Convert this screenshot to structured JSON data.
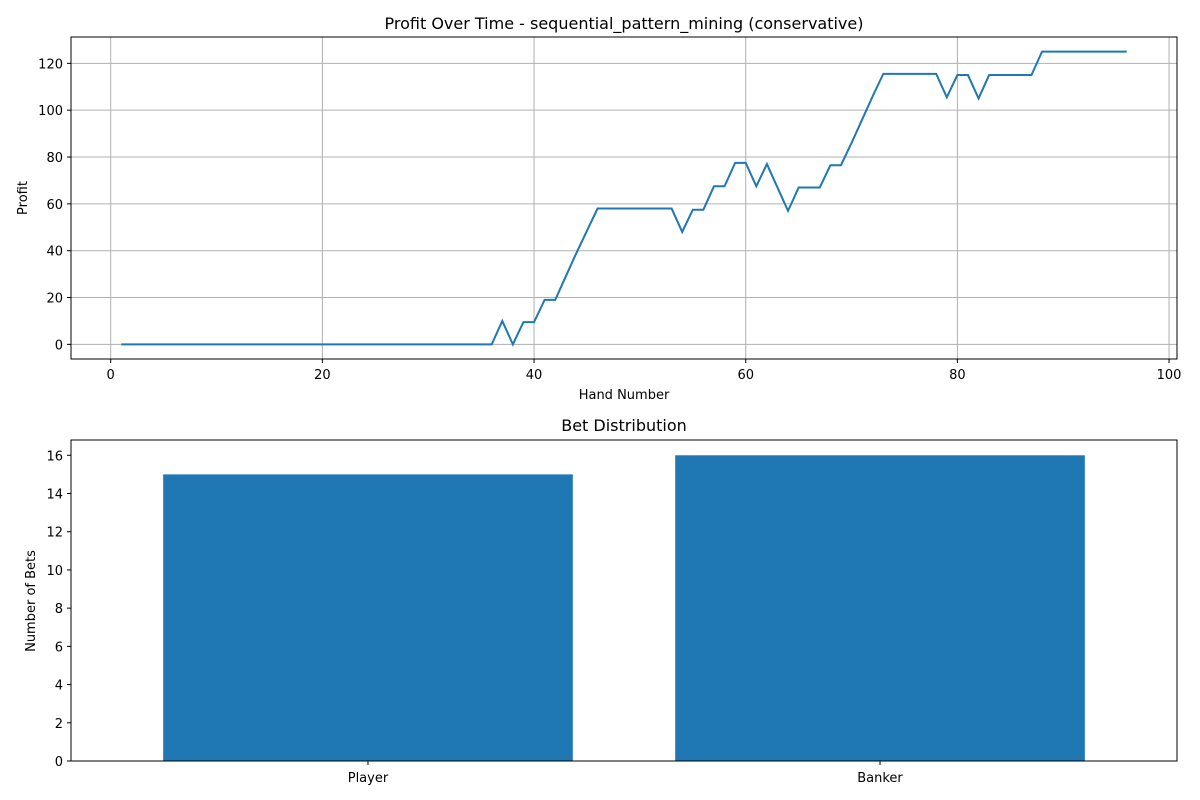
{
  "chart_data": [
    {
      "type": "line",
      "title": "Profit Over Time - sequential_pattern_mining (conservative)",
      "xlabel": "Hand Number",
      "ylabel": "Profit",
      "xlim": [
        -3.75,
        100.75
      ],
      "ylim": [
        -6.25,
        131.25
      ],
      "xticks": [
        0,
        20,
        40,
        60,
        80,
        100
      ],
      "yticks": [
        0,
        20,
        40,
        60,
        80,
        100,
        120
      ],
      "grid": true,
      "color": "#1f77b4",
      "series": [
        {
          "x": [
            1,
            2,
            3,
            4,
            5,
            6,
            7,
            8,
            9,
            10,
            11,
            12,
            13,
            14,
            15,
            16,
            17,
            18,
            19,
            20,
            21,
            22,
            23,
            24,
            25,
            26,
            27,
            28,
            29,
            30,
            31,
            32,
            33,
            34,
            35,
            36,
            37,
            38,
            39,
            40,
            41,
            42,
            43,
            44,
            45,
            46,
            47,
            48,
            49,
            50,
            51,
            52,
            53,
            54,
            55,
            56,
            57,
            58,
            59,
            60,
            61,
            62,
            63,
            64,
            65,
            66,
            67,
            68,
            69,
            70,
            71,
            72,
            73,
            74,
            75,
            76,
            77,
            78,
            79,
            80,
            81,
            82,
            83,
            84,
            85,
            86,
            87,
            88,
            89,
            90,
            91,
            92,
            93,
            94,
            95,
            96
          ],
          "y": [
            0,
            0,
            0,
            0,
            0,
            0,
            0,
            0,
            0,
            0,
            0,
            0,
            0,
            0,
            0,
            0,
            0,
            0,
            0,
            0,
            0,
            0,
            0,
            0,
            0,
            0,
            0,
            0,
            0,
            0,
            0,
            0,
            0,
            0,
            0,
            0,
            10,
            0,
            9.5,
            9.5,
            19,
            19,
            29,
            39,
            48.5,
            58,
            58,
            58,
            58,
            58,
            58,
            58,
            58,
            48,
            57.5,
            57.5,
            67.5,
            67.5,
            77.5,
            77.5,
            67.5,
            77,
            67,
            57,
            67,
            67,
            67,
            76.5,
            76.5,
            86,
            96,
            106,
            115.5,
            115.5,
            115.5,
            115.5,
            115.5,
            115.5,
            105.5,
            115,
            115,
            105,
            115,
            115,
            115,
            115,
            115,
            125,
            125,
            125,
            125,
            125,
            125,
            125,
            125,
            125
          ]
        }
      ]
    },
    {
      "type": "bar",
      "title": "Bet Distribution",
      "xlabel": "",
      "ylabel": "Number of Bets",
      "categories": [
        "Player",
        "Banker"
      ],
      "values": [
        15,
        16
      ],
      "ylim": [
        0,
        16.8
      ],
      "yticks": [
        0,
        2,
        4,
        6,
        8,
        10,
        12,
        14,
        16
      ],
      "grid": false,
      "color": "#1f77b4"
    }
  ]
}
